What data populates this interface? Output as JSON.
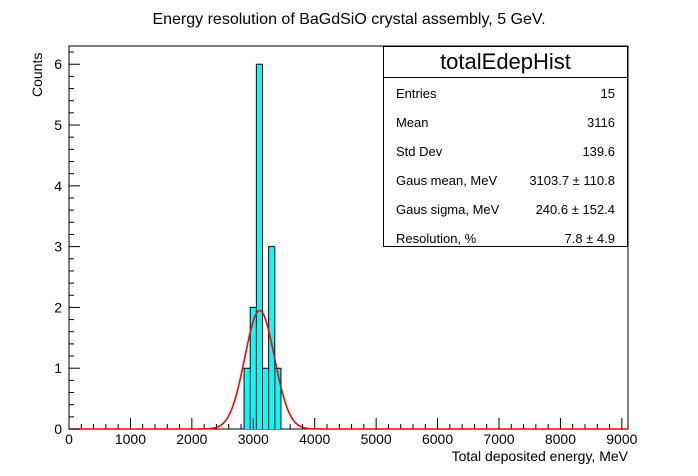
{
  "chart_data": {
    "type": "bar",
    "title": "Energy resolution of BaGdSiO crystal assembly, 5 GeV.",
    "xlabel": "Total deposited energy, MeV",
    "ylabel": "Counts",
    "xlim": [
      0,
      9100
    ],
    "ylim": [
      0,
      6.3
    ],
    "x_ticks": [
      0,
      1000,
      2000,
      3000,
      4000,
      5000,
      6000,
      7000,
      8000,
      9000
    ],
    "y_ticks": [
      0,
      1,
      2,
      3,
      4,
      5,
      6
    ],
    "histogram": {
      "bin_edges": [
        2850,
        2950,
        3050,
        3150,
        3250,
        3350,
        3450
      ],
      "counts": [
        1,
        2,
        6,
        1,
        3,
        1
      ],
      "fill_color": "#00ffff",
      "edge_color": "#000000"
    },
    "fit": {
      "function": "gaus",
      "amplitude": 1.95,
      "mean": 3103.7,
      "sigma": 240.6,
      "color": "#ff0000"
    },
    "grid": false,
    "legend": "top-right"
  },
  "stats_box": {
    "title": "totalEdepHist",
    "rows": [
      {
        "key": "Entries",
        "value": "15"
      },
      {
        "key": "Mean",
        "value": "3116"
      },
      {
        "key": "Std Dev",
        "value": "139.6"
      },
      {
        "key": "Gaus mean, MeV",
        "value": "3103.7 ± 110.8"
      },
      {
        "key": "Gaus sigma, MeV",
        "value": "240.6 ± 152.4"
      },
      {
        "key": "Resolution, %",
        "value": "7.8 ± 4.9"
      }
    ]
  }
}
